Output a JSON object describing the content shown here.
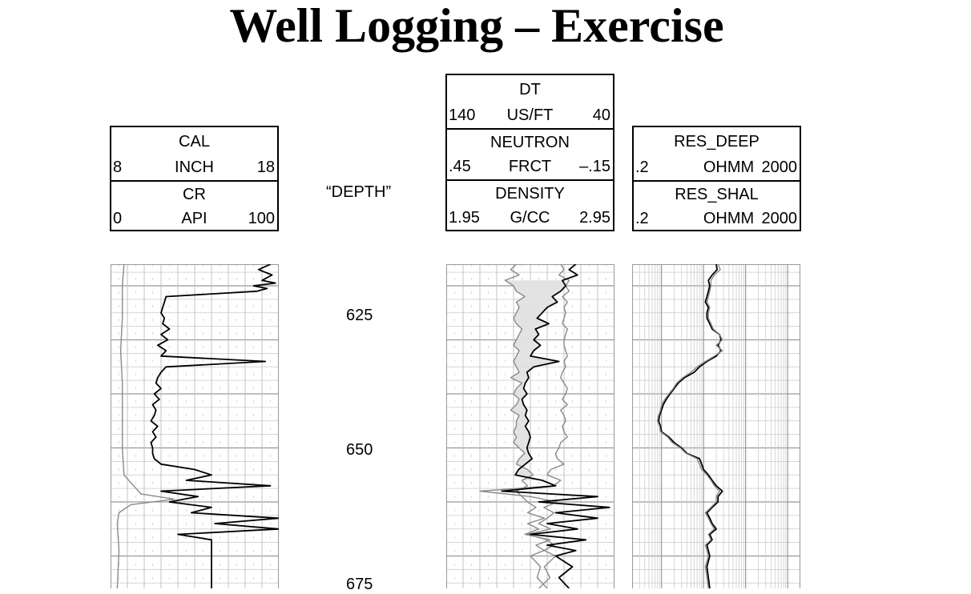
{
  "title": "Well Logging – Exercise",
  "depth_header": "“DEPTH”",
  "headers": {
    "track1": [
      {
        "name": "CAL",
        "left": "8",
        "unit": "INCH",
        "right": "18"
      },
      {
        "name": "CR",
        "left": "0",
        "unit": "API",
        "right": "100"
      }
    ],
    "track2": [
      {
        "name": "DT",
        "left": "140",
        "unit": "US/FT",
        "right": "40"
      },
      {
        "name": "NEUTRON",
        "left": ".45",
        "unit": "FRCT",
        "right": "–.15"
      },
      {
        "name": "DENSITY",
        "left": "1.95",
        "unit": "G/CC",
        "right": "2.95"
      }
    ],
    "track3": [
      {
        "name": "RES_DEEP",
        "left": ".2",
        "unit": "OHMM",
        "right": "2000"
      },
      {
        "name": "RES_SHAL",
        "left": ".2",
        "unit": "OHMM",
        "right": "2000"
      }
    ]
  },
  "chart_data": {
    "type": "line",
    "title": "Well Logging – Exercise",
    "depth_ticks": [
      "625",
      "650",
      "675"
    ],
    "depth_range": [
      616,
      676
    ],
    "colors": {
      "black_curve": "#000000",
      "gray_curve": "#8a8a8a",
      "grid": "#b0b0b0",
      "fill": "#e2e2e2"
    },
    "tracks": [
      {
        "id": "track1",
        "scale": "linear",
        "series": [
          {
            "name": "CAL",
            "unit": "INCH",
            "range": [
              8,
              18
            ],
            "color": "gray",
            "depth": [
              616,
              620,
              626,
              632,
              638,
              644,
              650,
              655,
              658.5,
              659.5,
              660.5,
              662,
              664,
              669,
              676
            ],
            "values": [
              8.8,
              8.7,
              8.7,
              8.6,
              8.7,
              8.7,
              8.7,
              8.8,
              9.8,
              11.8,
              9.2,
              8.5,
              8.4,
              8.5,
              8.4
            ]
          },
          {
            "name": "CR",
            "unit": "API",
            "range": [
              0,
              100
            ],
            "color": "black",
            "depth": [
              616,
              617,
              618,
              619,
              619.5,
              620,
              620.5,
              621,
              622,
              623,
              624,
              625,
              626,
              627,
              628,
              629,
              630,
              631,
              632,
              633,
              634,
              635,
              636,
              637,
              638,
              639,
              640,
              641,
              642,
              643,
              644,
              645,
              646,
              647,
              648,
              649,
              650,
              651,
              652,
              653,
              654,
              655,
              656,
              657,
              658,
              659,
              660,
              661,
              662,
              663,
              664,
              665,
              666,
              667,
              668,
              669,
              670,
              676
            ],
            "values": [
              95,
              88,
              96,
              90,
              98,
              85,
              93,
              87,
              33,
              32,
              31,
              30,
              32,
              31,
              35,
              30,
              34,
              28,
              33,
              30,
              92,
              33,
              30,
              28,
              27,
              30,
              26,
              29,
              25,
              27,
              26,
              24,
              28,
              25,
              27,
              24,
              25,
              25,
              26,
              30,
              50,
              60,
              45,
              95,
              30,
              52,
              35,
              60,
              48,
              100,
              62,
              100,
              40,
              60,
              60,
              60,
              60,
              60
            ]
          }
        ]
      },
      {
        "id": "track2",
        "scale": "linear",
        "series": [
          {
            "name": "DT",
            "unit": "US/FT",
            "range": [
              140,
              40
            ],
            "color": "gray",
            "depth": [
              616,
              617,
              618,
              619,
              620,
              621,
              622,
              623,
              624,
              625,
              626,
              627,
              628,
              629,
              630,
              631,
              632,
              633,
              634,
              635,
              636,
              637,
              638,
              639,
              640,
              641,
              642,
              643,
              644,
              645,
              646,
              647,
              648,
              649,
              650,
              651,
              652,
              653,
              654,
              655,
              656,
              657,
              658,
              659,
              660,
              661,
              662,
              663,
              664,
              665,
              666,
              667,
              668,
              669,
              670,
              672,
              674,
              676
            ],
            "values": [
              72,
              70,
              73,
              67,
              69,
              67,
              71,
              68,
              70,
              69,
              70,
              71,
              68,
              69,
              70,
              70,
              69,
              68,
              70,
              69,
              71,
              72,
              70,
              68,
              69,
              71,
              68,
              72,
              70,
              69,
              71,
              70,
              68,
              72,
              73,
              75,
              74,
              70,
              78,
              80,
              72,
              76,
              120,
              90,
              74,
              82,
              76,
              80,
              85,
              78,
              92,
              80,
              76,
              82,
              90,
              84,
              86,
              80
            ]
          },
          {
            "name": "NEUTRON",
            "unit": "FRCT",
            "range": [
              0.45,
              -0.15
            ],
            "color": "gray",
            "depth": [
              616,
              617,
              618,
              619,
              620,
              621,
              622,
              623,
              624,
              625,
              626,
              627,
              628,
              629,
              630,
              631,
              632,
              633,
              634,
              635,
              636,
              637,
              638,
              639,
              640,
              641,
              642,
              643,
              644,
              645,
              646,
              647,
              648,
              649,
              650,
              651,
              652,
              653,
              654,
              655,
              656,
              657,
              658,
              659,
              660,
              661,
              662,
              663,
              664,
              665,
              666,
              667,
              668,
              669,
              670,
              672,
              674,
              676
            ],
            "values": [
              0.2,
              0.22,
              0.19,
              0.24,
              0.21,
              0.2,
              0.17,
              0.2,
              0.19,
              0.2,
              0.21,
              0.2,
              0.18,
              0.19,
              0.2,
              0.21,
              0.19,
              0.2,
              0.21,
              0.2,
              0.19,
              0.22,
              0.18,
              0.2,
              0.21,
              0.19,
              0.2,
              0.22,
              0.19,
              0.2,
              0.2,
              0.21,
              0.2,
              0.21,
              0.19,
              0.17,
              0.19,
              0.2,
              0.16,
              0.14,
              0.18,
              0.16,
              0.2,
              0.18,
              0.16,
              0.13,
              0.16,
              0.1,
              0.16,
              0.12,
              0.17,
              0.08,
              0.13,
              0.1,
              0.06,
              0.1,
              0.08,
              0.12
            ]
          },
          {
            "name": "DENSITY",
            "unit": "G/CC",
            "range": [
              1.95,
              2.95
            ],
            "color": "black",
            "depth": [
              616,
              617,
              618,
              619,
              620,
              621,
              622,
              623,
              624,
              625,
              626,
              627,
              628,
              629,
              630,
              631,
              632,
              633,
              634,
              635,
              636,
              637,
              638,
              639,
              640,
              641,
              642,
              643,
              644,
              645,
              646,
              647,
              648,
              649,
              650,
              651,
              652,
              653,
              654,
              655,
              656,
              657,
              658,
              659,
              660,
              661,
              662,
              663,
              664,
              665,
              666,
              667,
              668,
              669,
              670,
              672,
              674,
              676
            ],
            "values": [
              2.72,
              2.68,
              2.73,
              2.64,
              2.66,
              2.63,
              2.58,
              2.61,
              2.55,
              2.52,
              2.49,
              2.56,
              2.48,
              2.5,
              2.47,
              2.51,
              2.47,
              2.45,
              2.62,
              2.47,
              2.43,
              2.44,
              2.42,
              2.41,
              2.43,
              2.4,
              2.41,
              2.43,
              2.42,
              2.44,
              2.42,
              2.44,
              2.45,
              2.44,
              2.43,
              2.44,
              2.46,
              2.42,
              2.38,
              2.36,
              2.52,
              2.6,
              2.28,
              2.85,
              2.5,
              2.92,
              2.6,
              2.85,
              2.55,
              2.73,
              2.45,
              2.78,
              2.55,
              2.72,
              2.6,
              2.7,
              2.62,
              2.68
            ]
          }
        ]
      },
      {
        "id": "track3",
        "scale": "log",
        "series": [
          {
            "name": "RES_DEEP",
            "unit": "OHMM",
            "range": [
              0.2,
              2000
            ],
            "color": "black",
            "depth": [
              616,
              617,
              618,
              619,
              620,
              621,
              622,
              623,
              624,
              625,
              626,
              627,
              628,
              629,
              630,
              631,
              632,
              633,
              634,
              635,
              636,
              637,
              638,
              639,
              640,
              641,
              642,
              643,
              644,
              645,
              646,
              647,
              648,
              649,
              650,
              651,
              652,
              653,
              654,
              655,
              656,
              657,
              658,
              659,
              660,
              661,
              662,
              663,
              664,
              665,
              666,
              667,
              668,
              669,
              670,
              672,
              674,
              676
            ],
            "values": [
              20,
              21,
              16,
              13,
              14,
              13,
              12,
              11,
              13,
              12,
              12,
              14,
              16,
              24,
              26,
              22,
              26,
              20,
              12,
              8,
              6,
              3.5,
              2.5,
              2,
              1.6,
              1.3,
              1.1,
              1,
              0.9,
              0.85,
              0.95,
              1,
              1.5,
              2,
              3,
              4,
              8,
              9,
              10,
              13,
              16,
              20,
              28,
              22,
              22,
              16,
              12,
              14,
              16,
              20,
              14,
              16,
              12,
              13,
              14,
              12,
              13,
              14
            ]
          },
          {
            "name": "RES_SHAL",
            "unit": "OHMM",
            "range": [
              0.2,
              2000
            ],
            "color": "gray",
            "depth": [
              616,
              617,
              618,
              619,
              620,
              621,
              622,
              623,
              624,
              625,
              626,
              627,
              628,
              629,
              630,
              631,
              632,
              633,
              634,
              635,
              636,
              637,
              638,
              639,
              640,
              641,
              642,
              643,
              644,
              645,
              646,
              647,
              648,
              649,
              650,
              651,
              652,
              653,
              654,
              655,
              656,
              657,
              658,
              659,
              660,
              661,
              662,
              663,
              664,
              665,
              666,
              667,
              668,
              669,
              670,
              672,
              674,
              676
            ],
            "values": [
              22,
              25,
              18,
              15,
              15,
              14,
              13,
              12,
              14,
              13,
              13,
              15,
              17,
              24,
              28,
              20,
              28,
              18,
              11,
              7,
              5,
              3.2,
              2.3,
              1.9,
              1.5,
              1.2,
              1,
              0.95,
              0.85,
              0.8,
              0.9,
              0.95,
              1.4,
              1.8,
              2.8,
              3.8,
              7,
              8,
              9,
              12,
              15,
              18,
              24,
              20,
              20,
              15,
              11,
              13,
              15,
              18,
              13,
              15,
              11,
              12,
              13,
              11,
              12,
              13
            ]
          }
        ]
      }
    ]
  }
}
